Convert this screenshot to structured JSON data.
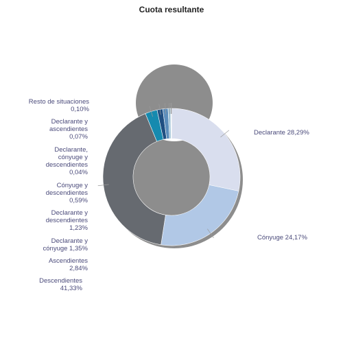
{
  "chart_data": {
    "type": "pie",
    "variant": "donut",
    "title": "Cuota resultante",
    "slices": [
      {
        "name": "Declarante",
        "value": 28.29,
        "label": "Declarante 28,29%",
        "color": "#d9deee"
      },
      {
        "name": "Cónyuge",
        "value": 24.17,
        "label": "Cónyuge 24,17%",
        "color": "#b1c8e6"
      },
      {
        "name": "Descendientes",
        "value": 41.33,
        "label": "Descendientes 41,33%",
        "color": "#666a70"
      },
      {
        "name": "Ascendientes",
        "value": 2.84,
        "label": "Ascendientes 2,84%",
        "color": "#168aaf"
      },
      {
        "name": "Declarante y cónyuge",
        "value": 1.35,
        "label": "Declarante y cónyuge 1,35%",
        "color": "#1f4f82"
      },
      {
        "name": "Declarante y descendientes",
        "value": 1.23,
        "label": "Declarante y descendientes 1,23%",
        "color": "#5b8dbb"
      },
      {
        "name": "Cónyuge y descendientes",
        "value": 0.59,
        "label": "Cónyuge y descendientes 0,59%",
        "color": "#9bc0d4"
      },
      {
        "name": "Declarante, cónyuge y descendientes",
        "value": 0.04,
        "label": "Declarante, cónyuge y descendientes 0,04%",
        "color": "#333f55"
      },
      {
        "name": "Declarante y ascendientes",
        "value": 0.07,
        "label": "Declarante y ascendientes 0,07%",
        "color": "#4c6e8c"
      },
      {
        "name": "Resto de situaciones",
        "value": 0.1,
        "label": "Resto de situaciones 0,10%",
        "color": "#7f8c96"
      }
    ],
    "legend": "none"
  }
}
